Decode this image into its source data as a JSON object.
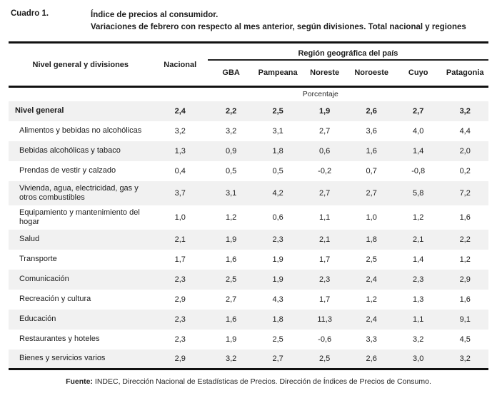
{
  "page": {
    "label": "Cuadro 1.",
    "title_line1": "Índice de precios al consumidor.",
    "title_line2": "Variaciones de febrero con respecto al mes anterior, según divisiones. Total nacional y regiones"
  },
  "table": {
    "col1_header": "Nivel general y divisiones",
    "col2_header": "Nacional",
    "region_group_header": "Región geográfica del país",
    "region_columns": [
      "GBA",
      "Pampeana",
      "Noreste",
      "Noroeste",
      "Cuyo",
      "Patagonia"
    ],
    "unit_label": "Porcentaje",
    "rows": [
      {
        "label": "Nivel general",
        "bold": true,
        "values": [
          "2,4",
          "2,2",
          "2,5",
          "1,9",
          "2,6",
          "2,7",
          "3,2"
        ]
      },
      {
        "label": "Alimentos y bebidas no alcohólicas",
        "bold": false,
        "values": [
          "3,2",
          "3,2",
          "3,1",
          "2,7",
          "3,6",
          "4,0",
          "4,4"
        ]
      },
      {
        "label": "Bebidas alcohólicas y tabaco",
        "bold": false,
        "values": [
          "1,3",
          "0,9",
          "1,8",
          "0,6",
          "1,6",
          "1,4",
          "2,0"
        ]
      },
      {
        "label": "Prendas de vestir y calzado",
        "bold": false,
        "values": [
          "0,4",
          "0,5",
          "0,5",
          "-0,2",
          "0,7",
          "-0,8",
          "0,2"
        ]
      },
      {
        "label": "Vivienda, agua, electricidad, gas y otros combustibles",
        "bold": false,
        "values": [
          "3,7",
          "3,1",
          "4,2",
          "2,7",
          "2,7",
          "5,8",
          "7,2"
        ]
      },
      {
        "label": "Equipamiento y mantenimiento del hogar",
        "bold": false,
        "values": [
          "1,0",
          "1,2",
          "0,6",
          "1,1",
          "1,0",
          "1,2",
          "1,6"
        ]
      },
      {
        "label": "Salud",
        "bold": false,
        "values": [
          "2,1",
          "1,9",
          "2,3",
          "2,1",
          "1,8",
          "2,1",
          "2,2"
        ]
      },
      {
        "label": "Transporte",
        "bold": false,
        "values": [
          "1,7",
          "1,6",
          "1,9",
          "1,7",
          "2,5",
          "1,4",
          "1,2"
        ]
      },
      {
        "label": "Comunicación",
        "bold": false,
        "values": [
          "2,3",
          "2,5",
          "1,9",
          "2,3",
          "2,4",
          "2,3",
          "2,9"
        ]
      },
      {
        "label": "Recreación y cultura",
        "bold": false,
        "values": [
          "2,9",
          "2,7",
          "4,3",
          "1,7",
          "1,2",
          "1,3",
          "1,6"
        ]
      },
      {
        "label": "Educación",
        "bold": false,
        "values": [
          "2,3",
          "1,6",
          "1,8",
          "11,3",
          "2,4",
          "1,1",
          "9,1"
        ]
      },
      {
        "label": "Restaurantes y hoteles",
        "bold": false,
        "values": [
          "2,3",
          "1,9",
          "2,5",
          "-0,6",
          "3,3",
          "3,2",
          "4,5"
        ]
      },
      {
        "label": "Bienes y servicios varios",
        "bold": false,
        "values": [
          "2,9",
          "3,2",
          "2,7",
          "2,5",
          "2,6",
          "3,0",
          "3,2"
        ]
      }
    ]
  },
  "footer": {
    "source_label": "Fuente:",
    "source_text": " INDEC, Dirección Nacional de Estadísticas de Precios. Dirección de Índices de Precios de Consumo."
  },
  "colors": {
    "stripe": "#f1f1f1",
    "rule": "#111111",
    "text": "#1c1c1c"
  }
}
